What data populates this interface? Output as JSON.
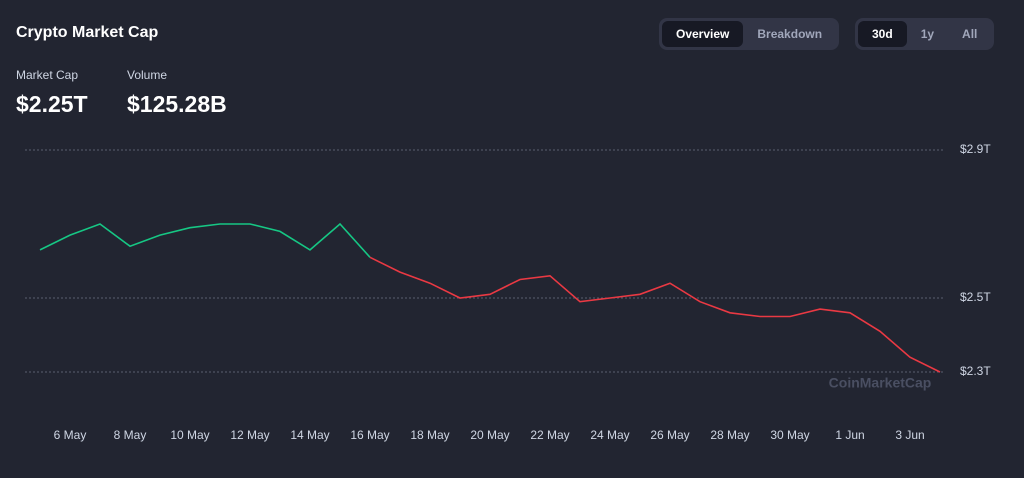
{
  "header": {
    "title": "Crypto Market Cap",
    "stats": [
      {
        "label": "Market Cap",
        "value": "$2.25T"
      },
      {
        "label": "Volume",
        "value": "$125.28B"
      }
    ]
  },
  "view_tabs": [
    {
      "label": "Overview",
      "active": true
    },
    {
      "label": "Breakdown",
      "active": false
    }
  ],
  "range_tabs": [
    {
      "label": "30d",
      "active": true
    },
    {
      "label": "1y",
      "active": false
    },
    {
      "label": "All",
      "active": false
    }
  ],
  "watermark": "CoinMarketCap",
  "chart_data": {
    "type": "line",
    "categories": [
      null,
      "6 May",
      null,
      "8 May",
      null,
      "10 May",
      null,
      "12 May",
      null,
      "14 May",
      null,
      "16 May",
      null,
      "18 May",
      null,
      "20 May",
      null,
      "22 May",
      null,
      "24 May",
      null,
      "26 May",
      null,
      "28 May",
      null,
      "30 May",
      null,
      "1 Jun",
      null,
      "3 Jun",
      null
    ],
    "series": [
      {
        "name": "Market Cap",
        "values": [
          2.63,
          2.67,
          2.7,
          2.64,
          2.67,
          2.69,
          2.7,
          2.7,
          2.68,
          2.63,
          2.7,
          2.61,
          2.57,
          2.54,
          2.5,
          2.51,
          2.55,
          2.56,
          2.49,
          2.5,
          2.51,
          2.54,
          2.49,
          2.46,
          2.45,
          2.45,
          2.47,
          2.46,
          2.41,
          2.34,
          2.3
        ]
      }
    ],
    "colors": {
      "up": "#16c784",
      "down": "#ea3943"
    },
    "ylim": [
      2.28,
      2.92
    ],
    "yticks": [
      {
        "value": 2.3,
        "label": "$2.3T"
      },
      {
        "value": 2.5,
        "label": "$2.5T"
      },
      {
        "value": 2.9,
        "label": "$2.9T"
      }
    ],
    "grid": true
  }
}
